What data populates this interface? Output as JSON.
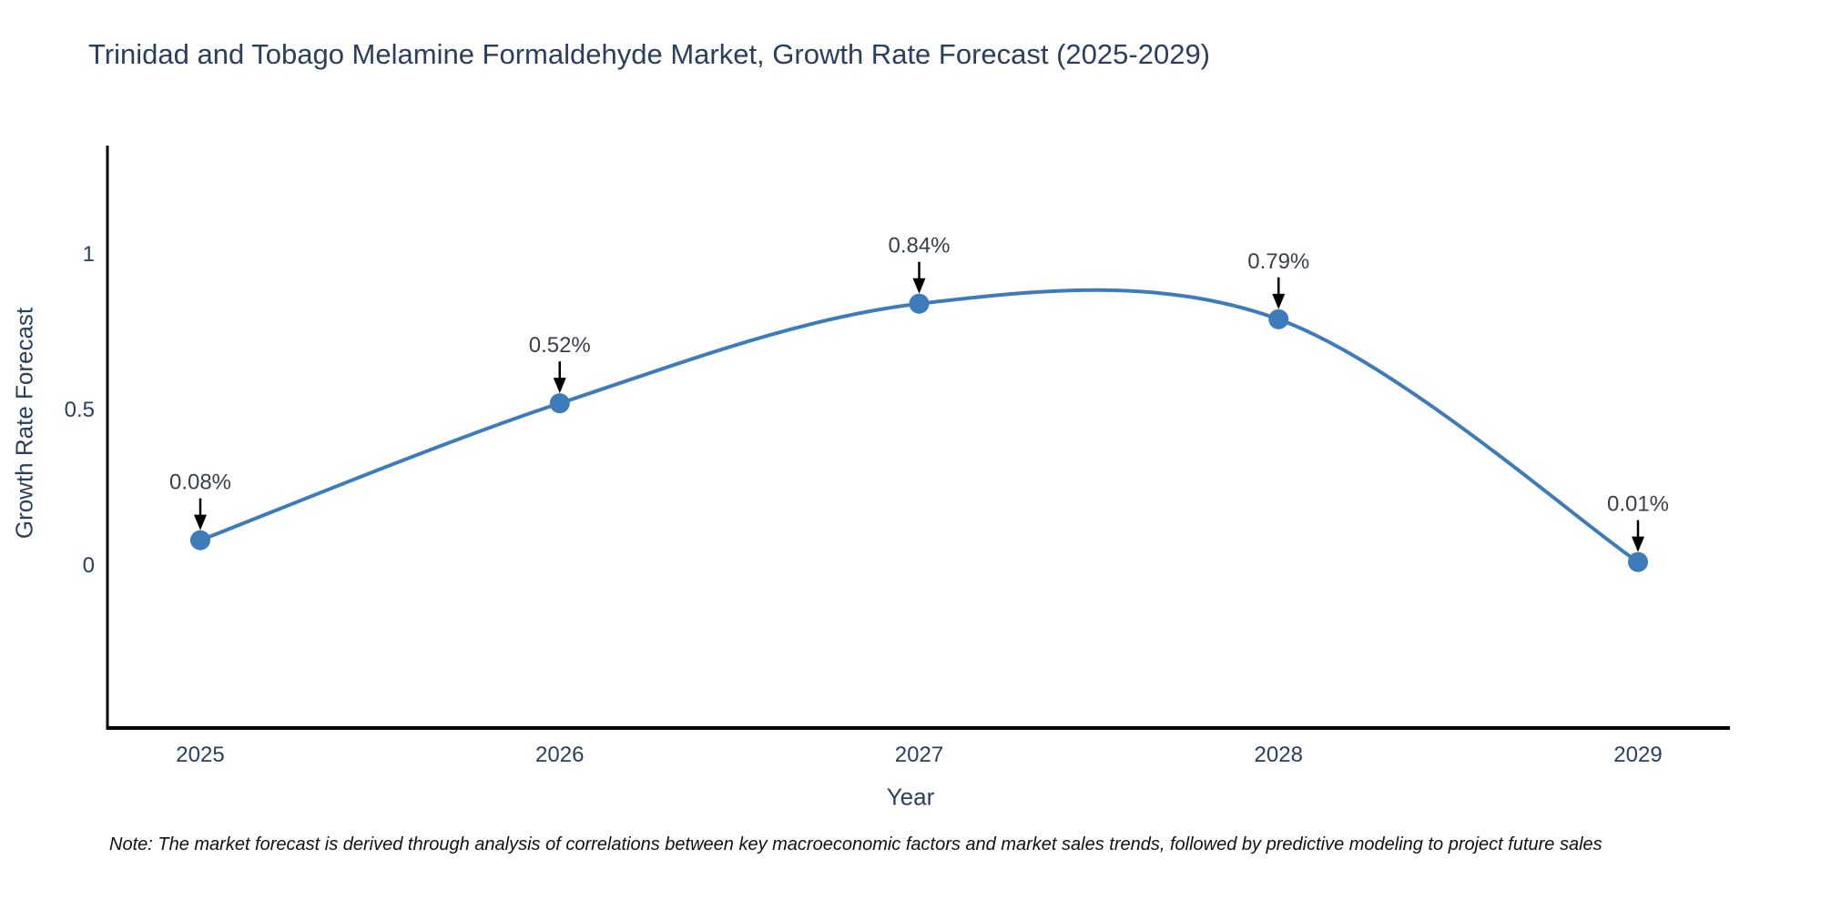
{
  "chart_data": {
    "type": "line",
    "title": "Trinidad and Tobago Melamine Formaldehyde Market, Growth Rate Forecast (2025-2029)",
    "xlabel": "Year",
    "ylabel": "Growth Rate Forecast",
    "x": [
      2025,
      2026,
      2027,
      2028,
      2029
    ],
    "values": [
      0.08,
      0.52,
      0.84,
      0.79,
      0.01
    ],
    "point_labels": [
      "0.08%",
      "0.52%",
      "0.84%",
      "0.79%",
      "0.01%"
    ],
    "xtick_labels": [
      "2025",
      "2026",
      "2027",
      "2028",
      "2029"
    ],
    "yticks": [
      0,
      0.5,
      1
    ],
    "ytick_labels": [
      "0",
      "0.5",
      "1"
    ],
    "ylim": [
      -0.53,
      1.35
    ],
    "line_shape": "spline",
    "grid": false,
    "legend": "none",
    "colors": {
      "line": "#3e7bba",
      "marker": "#3e7bba",
      "axis": "#000000",
      "title_text": "#2a3f5f",
      "tick_text": "#2a3f5f",
      "annotation_text": "#39404a",
      "arrow": "#000000"
    }
  },
  "note": {
    "text": "Note: The market forecast is derived through analysis of correlations between key macroeconomic factors and market sales trends, followed by predictive modeling to project future sales"
  }
}
